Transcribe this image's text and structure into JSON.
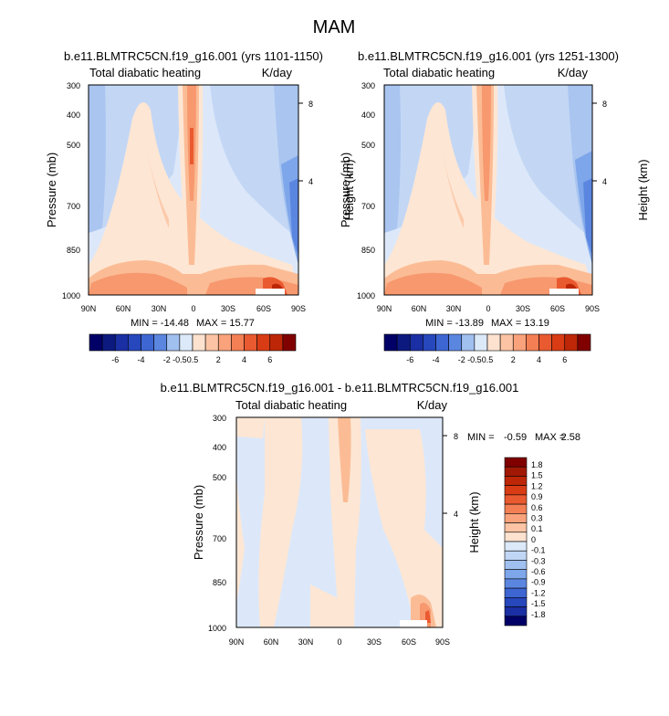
{
  "figure_title": "MAM",
  "colors": {
    "positive": [
      "#fde2cf",
      "#fcc4a4",
      "#f9a27b",
      "#f47f55",
      "#ea5a30",
      "#d93c14",
      "#bd2708",
      "#a11905",
      "#800000"
    ],
    "negative": [
      "#dce9f9",
      "#c0d6f5",
      "#a0c0f0",
      "#7ea6ea",
      "#5b86e0",
      "#3e66d3",
      "#2747bd",
      "#1a2fa3",
      "#0c1a80",
      "#000066"
    ]
  },
  "chart_data": [
    {
      "type": "heatmap",
      "title": "b.e11.BLMTRC5CN.f19_g16.001 (yrs 1101-1150)",
      "left_string": "Total diabatic heating",
      "right_string": "K/day",
      "ylabel": "Pressure (mb)",
      "ylabel_right": "Height (km)",
      "x_ticks": [
        "90N",
        "60N",
        "30N",
        "0",
        "30S",
        "60S",
        "90S"
      ],
      "y_ticks": [
        "300",
        "400",
        "500",
        "700",
        "850",
        "1000"
      ],
      "y_ticks_right": [
        "8",
        "4"
      ],
      "ylim": [
        1000,
        300
      ],
      "xlim": [
        90,
        -90
      ],
      "stats": {
        "min_label": "MIN = -14.48",
        "max_label": "MAX = 15.77"
      },
      "min": -14.48,
      "max": 15.77
    },
    {
      "type": "heatmap",
      "title": "b.e11.BLMTRC5CN.f19_g16.001 (yrs 1251-1300)",
      "left_string": "Total diabatic heating",
      "right_string": "K/day",
      "ylabel": "Pressure (mb)",
      "ylabel_right": "Height (km)",
      "x_ticks": [
        "90N",
        "60N",
        "30N",
        "0",
        "30S",
        "60S",
        "90S"
      ],
      "y_ticks": [
        "300",
        "400",
        "500",
        "700",
        "850",
        "1000"
      ],
      "y_ticks_right": [
        "8",
        "4"
      ],
      "ylim": [
        1000,
        300
      ],
      "xlim": [
        90,
        -90
      ],
      "stats": {
        "min_label": "MIN = -13.89",
        "max_label": "MAX = 13.19"
      },
      "min": -13.89,
      "max": 13.19
    },
    {
      "type": "heatmap",
      "title": "b.e11.BLMTRC5CN.f19_g16.001 - b.e11.BLMTRC5CN.f19_g16.001",
      "left_string": "Total diabatic heating",
      "right_string": "K/day",
      "ylabel": "Pressure (mb)",
      "ylabel_right": "Height (km)",
      "x_ticks": [
        "90N",
        "60N",
        "30N",
        "0",
        "30S",
        "60S",
        "90S"
      ],
      "y_ticks": [
        "300",
        "400",
        "500",
        "700",
        "850",
        "1000"
      ],
      "y_ticks_right": [
        "8",
        "4"
      ],
      "ylim": [
        1000,
        300
      ],
      "xlim": [
        90,
        -90
      ],
      "stats": {
        "min_label": "MIN =",
        "min_value": "-0.59",
        "max_label": "MAX =",
        "max_value": "2.58"
      },
      "min": -0.59,
      "max": 2.58
    }
  ],
  "colorbar_top": {
    "labels": [
      "-6",
      "-4",
      "-2",
      "-0.5",
      "0.5",
      "2",
      "4",
      "6"
    ],
    "levels": [
      -7,
      -6,
      -5,
      -4,
      -3,
      -2,
      -1,
      -0.5,
      0.5,
      1,
      2,
      3,
      4,
      5,
      6,
      7
    ]
  },
  "colorbar_diff": {
    "labels": [
      "1.8",
      "1.5",
      "1.2",
      "0.9",
      "0.6",
      "0.3",
      "0.1",
      "0",
      "-0.1",
      "-0.3",
      "-0.6",
      "-0.9",
      "-1.2",
      "-1.5",
      "-1.8"
    ]
  }
}
